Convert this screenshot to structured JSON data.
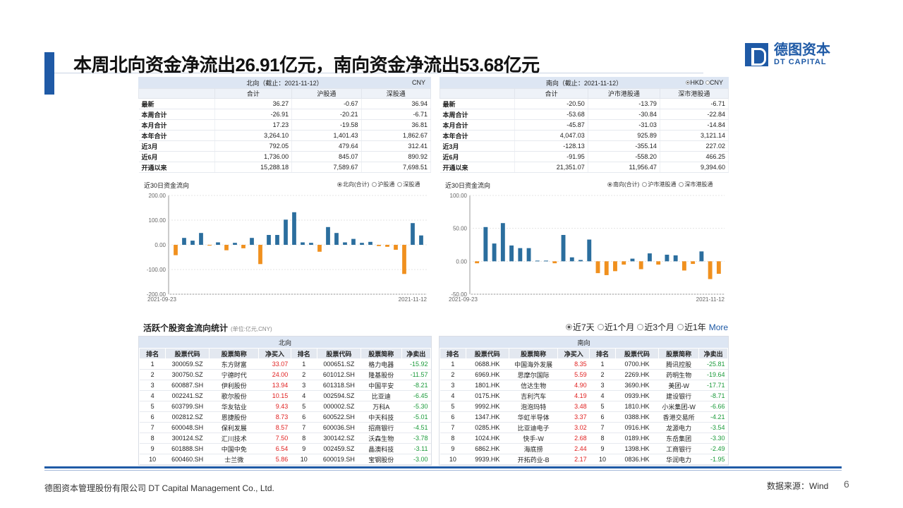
{
  "title": "本周北向资金净流出26.91亿元，南向资金净流出53.68亿元",
  "logo": {
    "cn": "德图资本",
    "en": "DT CAPITAL"
  },
  "north": {
    "header": "北向（截止：2021-11-12）",
    "currency": "CNY",
    "columns": [
      "合计",
      "沪股通",
      "深股通"
    ],
    "rows": [
      {
        "label": "最新",
        "v": [
          "36.27",
          "-0.67",
          "36.94"
        ]
      },
      {
        "label": "本周合计",
        "v": [
          "-26.91",
          "-20.21",
          "-6.71"
        ]
      },
      {
        "label": "本月合计",
        "v": [
          "17.23",
          "-19.58",
          "36.81"
        ]
      },
      {
        "label": "本年合计",
        "v": [
          "3,264.10",
          "1,401.43",
          "1,862.67"
        ]
      },
      {
        "label": "近3月",
        "v": [
          "792.05",
          "479.64",
          "312.41"
        ]
      },
      {
        "label": "近6月",
        "v": [
          "1,736.00",
          "845.07",
          "890.92"
        ]
      },
      {
        "label": "开通以来",
        "v": [
          "15,288.18",
          "7,589.67",
          "7,698.51"
        ]
      }
    ],
    "chart_title": "近30日资金流向",
    "radios": [
      "北向(合计)",
      "沪股通",
      "深股通"
    ]
  },
  "south": {
    "header": "南向（截止：2021-11-12）",
    "currency_options": [
      "HKD",
      "CNY"
    ],
    "columns": [
      "合计",
      "沪市港股通",
      "深市港股通"
    ],
    "rows": [
      {
        "label": "最新",
        "v": [
          "-20.50",
          "-13.79",
          "-6.71"
        ]
      },
      {
        "label": "本周合计",
        "v": [
          "-53.68",
          "-30.84",
          "-22.84"
        ]
      },
      {
        "label": "本月合计",
        "v": [
          "-45.87",
          "-31.03",
          "-14.84"
        ]
      },
      {
        "label": "本年合计",
        "v": [
          "4,047.03",
          "925.89",
          "3,121.14"
        ]
      },
      {
        "label": "近3月",
        "v": [
          "-128.13",
          "-355.14",
          "227.02"
        ]
      },
      {
        "label": "近6月",
        "v": [
          "-91.95",
          "-558.20",
          "466.25"
        ]
      },
      {
        "label": "开通以来",
        "v": [
          "21,351.07",
          "11,956.47",
          "9,394.60"
        ]
      }
    ],
    "chart_title": "近30日资金流向",
    "radios": [
      "南向(合计)",
      "沪市港股通",
      "深市港股通"
    ]
  },
  "chart_data": [
    {
      "type": "bar",
      "title": "近30日资金流向",
      "x_start": "2021-09-23",
      "x_end": "2021-11-12",
      "ylim": [
        -200,
        200
      ],
      "yticks": [
        "200.00",
        "100.00",
        "0.00",
        "-100.00",
        "-200.00"
      ],
      "values": [
        -42,
        28,
        17,
        48,
        -3,
        10,
        -22,
        8,
        -14,
        28,
        -78,
        40,
        40,
        102,
        132,
        10,
        8,
        -28,
        72,
        48,
        10,
        24,
        8,
        12,
        -5,
        -8,
        -20,
        -118,
        88,
        38
      ],
      "colors": {
        "pos": "#2b6e9e",
        "neg": "#f0901e"
      }
    },
    {
      "type": "bar",
      "title": "近30日资金流向",
      "x_start": "2021-09-23",
      "x_end": "2021-11-12",
      "ylim": [
        -50,
        100
      ],
      "yticks": [
        "100.00",
        "50.00",
        "0.00",
        "-50.00"
      ],
      "values": [
        -3,
        52,
        27,
        58,
        24,
        20,
        20,
        1,
        1,
        -3,
        40,
        6,
        2,
        33,
        -18,
        -21,
        -15,
        -5,
        4,
        -12,
        12,
        -5,
        10,
        9,
        -14,
        -4,
        15,
        -27,
        -19
      ],
      "colors": {
        "pos": "#2b6e9e",
        "neg": "#f0901e"
      }
    }
  ],
  "active": {
    "title": "活跃个股资金流向统计",
    "unit": "(单位:亿元,CNY)",
    "periods": [
      "近7天",
      "近1个月",
      "近3个月",
      "近1年"
    ],
    "more": "More",
    "north_label": "北向",
    "south_label": "南向",
    "north_cols": [
      "排名",
      "股票代码",
      "股票简称",
      "净买入",
      "排名",
      "股票代码",
      "股票简称",
      "净卖出"
    ],
    "south_cols": [
      "排名",
      "股票代码",
      "股票简称",
      "净买入",
      "排名",
      "股票代码",
      "股票简称",
      "净卖出"
    ],
    "north_rows": [
      [
        "1",
        "300059.SZ",
        "东方财富",
        "33.07",
        "1",
        "000651.SZ",
        "格力电器",
        "-15.92"
      ],
      [
        "2",
        "300750.SZ",
        "宁德时代",
        "24.00",
        "2",
        "601012.SH",
        "隆基股份",
        "-11.57"
      ],
      [
        "3",
        "600887.SH",
        "伊利股份",
        "13.94",
        "3",
        "601318.SH",
        "中国平安",
        "-8.21"
      ],
      [
        "4",
        "002241.SZ",
        "歌尔股份",
        "10.15",
        "4",
        "002594.SZ",
        "比亚迪",
        "-6.45"
      ],
      [
        "5",
        "603799.SH",
        "华友钴业",
        "9.43",
        "5",
        "000002.SZ",
        "万科A",
        "-5.30"
      ],
      [
        "6",
        "002812.SZ",
        "恩捷股份",
        "8.73",
        "6",
        "600522.SH",
        "中天科技",
        "-5.01"
      ],
      [
        "7",
        "600048.SH",
        "保利发展",
        "8.57",
        "7",
        "600036.SH",
        "招商银行",
        "-4.51"
      ],
      [
        "8",
        "300124.SZ",
        "汇川技术",
        "7.50",
        "8",
        "300142.SZ",
        "沃森生物",
        "-3.78"
      ],
      [
        "9",
        "601888.SH",
        "中国中免",
        "6.54",
        "9",
        "002459.SZ",
        "晶澳科技",
        "-3.11"
      ],
      [
        "10",
        "600460.SH",
        "士兰微",
        "5.86",
        "10",
        "600019.SH",
        "宝钢股份",
        "-3.00"
      ]
    ],
    "south_rows": [
      [
        "1",
        "0688.HK",
        "中国海外发展",
        "8.35",
        "1",
        "0700.HK",
        "腾讯控股",
        "-25.81"
      ],
      [
        "2",
        "6969.HK",
        "思摩尔国际",
        "5.59",
        "2",
        "2269.HK",
        "药明生物",
        "-19.64"
      ],
      [
        "3",
        "1801.HK",
        "信达生物",
        "4.90",
        "3",
        "3690.HK",
        "美团-W",
        "-17.71"
      ],
      [
        "4",
        "0175.HK",
        "吉利汽车",
        "4.19",
        "4",
        "0939.HK",
        "建设银行",
        "-8.71"
      ],
      [
        "5",
        "9992.HK",
        "泡泡玛特",
        "3.48",
        "5",
        "1810.HK",
        "小米集团-W",
        "-6.66"
      ],
      [
        "6",
        "1347.HK",
        "华虹半导体",
        "3.37",
        "6",
        "0388.HK",
        "香港交易所",
        "-4.21"
      ],
      [
        "7",
        "0285.HK",
        "比亚迪电子",
        "3.02",
        "7",
        "0916.HK",
        "龙源电力",
        "-3.54"
      ],
      [
        "8",
        "1024.HK",
        "快手-W",
        "2.68",
        "8",
        "0189.HK",
        "东岳集团",
        "-3.30"
      ],
      [
        "9",
        "6862.HK",
        "海底捞",
        "2.44",
        "9",
        "1398.HK",
        "工商银行",
        "-2.49"
      ],
      [
        "10",
        "9939.HK",
        "开拓药业-B",
        "2.17",
        "10",
        "0836.HK",
        "华润电力",
        "-1.95"
      ]
    ]
  },
  "footer": {
    "company": "德图资本管理股份有限公司  DT Capital Management  Co., Ltd.",
    "source": "数据来源：Wind",
    "page": "6"
  }
}
